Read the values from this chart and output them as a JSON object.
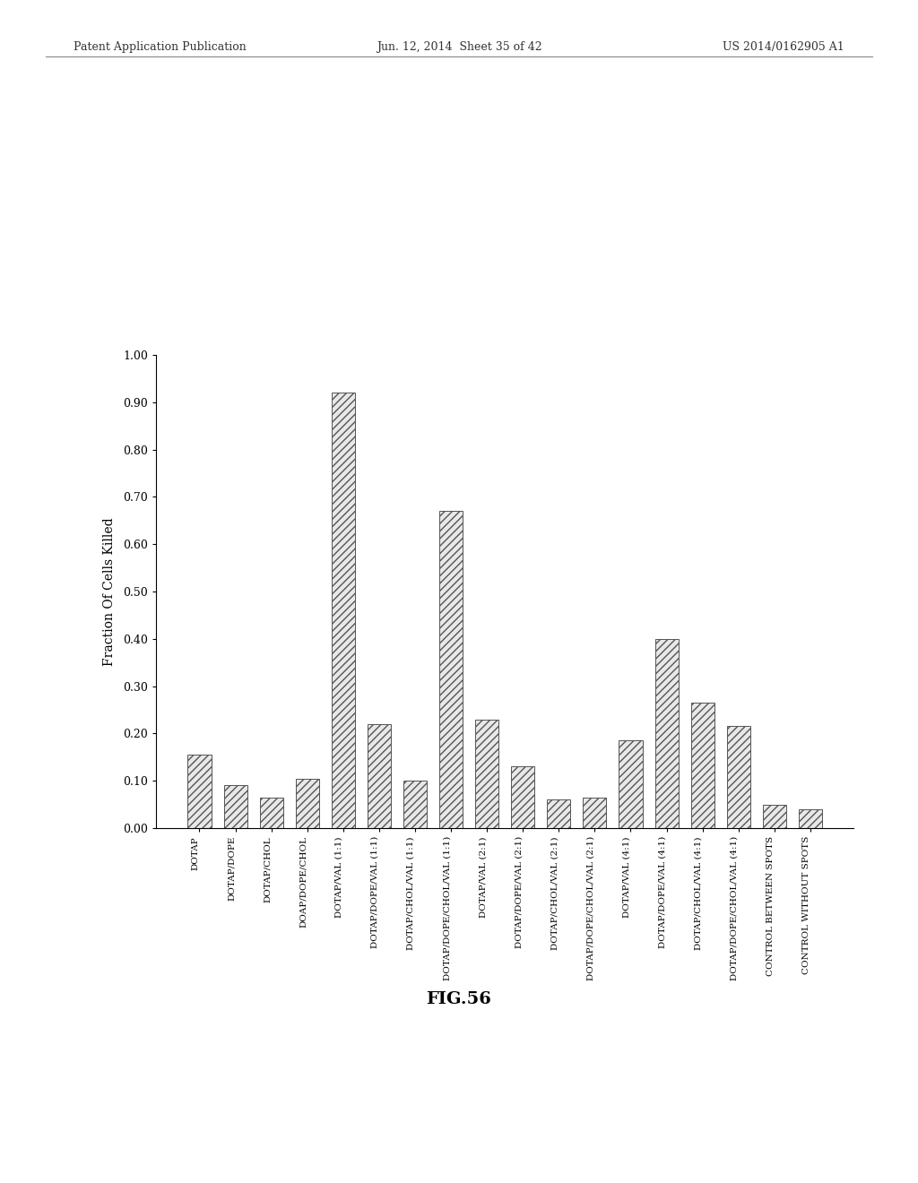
{
  "categories": [
    "DOTAP",
    "DOTAP/DOPE",
    "DOTAP/CHOL",
    "DOAP/DOPE/CHOL",
    "DOTAP/VAL (1:1)",
    "DOTAP/DOPE/VAL (1:1)",
    "DOTAP/CHOL/VAL (1:1)",
    "DOTAP/DOPE/CHOL/VAL (1:1)",
    "DOTAP/VAL (2:1)",
    "DOTAP/DOPE/VAL (2:1)",
    "DOTAP/CHOL/VAL (2:1)",
    "DOTAP/DOPE/CHOL/VAL (2:1)",
    "DOTAP/VAL (4:1)",
    "DOTAP/DOPE/VAL (4:1)",
    "DOTAP/CHOL/VAL (4:1)",
    "DOTAP/DOPE/CHOL/VAL (4:1)",
    "CONTROL BETWEEN SPOTS",
    "CONTROL WITHOUT SPOTS"
  ],
  "values": [
    0.155,
    0.09,
    0.065,
    0.105,
    0.92,
    0.22,
    0.1,
    0.67,
    0.23,
    0.13,
    0.06,
    0.065,
    0.185,
    0.4,
    0.265,
    0.215,
    0.05,
    0.04
  ],
  "ylabel": "Fraction Of Cells Killed",
  "ylim": [
    0.0,
    1.0
  ],
  "yticks": [
    0.0,
    0.1,
    0.2,
    0.3,
    0.4,
    0.5,
    0.6,
    0.7,
    0.8,
    0.9,
    1.0
  ],
  "fig_caption": "FIG.56",
  "bar_color": "#e8e8e8",
  "hatch": "////",
  "bar_edge_color": "#555555",
  "background_color": "#ffffff",
  "header_left": "Patent Application Publication",
  "header_mid": "Jun. 12, 2014  Sheet 35 of 42",
  "header_right": "US 2014/0162905 A1"
}
